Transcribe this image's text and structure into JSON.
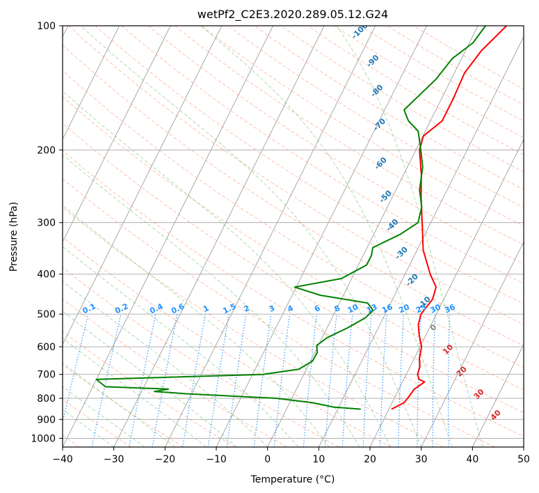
{
  "chart_data": {
    "type": "line",
    "subtype": "skew-t log-p diagram",
    "title": "wetPf2_C2E3.2020.289.05.12.G24",
    "xlabel": "Temperature (°C)",
    "ylabel": "Pressure (hPa)",
    "xlim": [
      -40,
      50
    ],
    "ylim": [
      1050,
      100
    ],
    "y_scale": "log",
    "grid": true,
    "x_ticks": [
      -40,
      -30,
      -20,
      -10,
      0,
      10,
      20,
      30,
      40,
      50
    ],
    "y_ticks": [
      1000,
      900,
      800,
      700,
      600,
      500,
      400,
      300,
      200,
      100
    ],
    "colors": {
      "temperature": "#ff0000",
      "dewpoint": "#008000",
      "dry_adiabat": "#ff8c69",
      "moist_adiabat": "#5cb85c",
      "mixing_ratio": "#1e90ff",
      "isotherm": "#7f7f7f",
      "label_dark_blue": "#1f77b4",
      "label_light_blue": "#1e90ff",
      "label_red": "#d62728"
    },
    "series": [
      {
        "name": "",
        "role": "temperature",
        "points": [
          {
            "p": 850,
            "t": 20.5
          },
          {
            "p": 820,
            "t": 22.3
          },
          {
            "p": 800,
            "t": 22.6
          },
          {
            "p": 760,
            "t": 23.0
          },
          {
            "p": 730,
            "t": 24.3
          },
          {
            "p": 720,
            "t": 23.0
          },
          {
            "p": 700,
            "t": 22.2
          },
          {
            "p": 670,
            "t": 21.9
          },
          {
            "p": 640,
            "t": 21.0
          },
          {
            "p": 600,
            "t": 20.3
          },
          {
            "p": 560,
            "t": 18.6
          },
          {
            "p": 530,
            "t": 17.5
          },
          {
            "p": 500,
            "t": 17.0
          },
          {
            "p": 460,
            "t": 17.8
          },
          {
            "p": 430,
            "t": 17.3
          },
          {
            "p": 400,
            "t": 14.9
          },
          {
            "p": 350,
            "t": 11.2
          },
          {
            "p": 300,
            "t": 8.3
          },
          {
            "p": 260,
            "t": 5.6
          },
          {
            "p": 230,
            "t": 3.5
          },
          {
            "p": 200,
            "t": 0.7
          },
          {
            "p": 185,
            "t": 0.1
          },
          {
            "p": 170,
            "t": 2.3
          },
          {
            "p": 150,
            "t": 2.3
          },
          {
            "p": 130,
            "t": 2.0
          },
          {
            "p": 115,
            "t": 3.1
          },
          {
            "p": 100,
            "t": 5.6
          }
        ]
      },
      {
        "name": "",
        "role": "dewpoint",
        "points": [
          {
            "p": 850,
            "t": 14.5
          },
          {
            "p": 840,
            "t": 9.0
          },
          {
            "p": 820,
            "t": 4.5
          },
          {
            "p": 800,
            "t": -3.0
          },
          {
            "p": 780,
            "t": -21.0
          },
          {
            "p": 770,
            "t": -27.5
          },
          {
            "p": 760,
            "t": -25.0
          },
          {
            "p": 750,
            "t": -37.5
          },
          {
            "p": 720,
            "t": -40.0
          },
          {
            "p": 700,
            "t": -8.0
          },
          {
            "p": 680,
            "t": -1.5
          },
          {
            "p": 650,
            "t": 0.4
          },
          {
            "p": 620,
            "t": 0.5
          },
          {
            "p": 595,
            "t": -0.3
          },
          {
            "p": 570,
            "t": 1.0
          },
          {
            "p": 540,
            "t": 4.0
          },
          {
            "p": 510,
            "t": 6.5
          },
          {
            "p": 490,
            "t": 7.3
          },
          {
            "p": 470,
            "t": 5.5
          },
          {
            "p": 450,
            "t": -4.5
          },
          {
            "p": 430,
            "t": -10.3
          },
          {
            "p": 410,
            "t": -2.0
          },
          {
            "p": 380,
            "t": 1.6
          },
          {
            "p": 360,
            "t": 1.6
          },
          {
            "p": 345,
            "t": 1.1
          },
          {
            "p": 320,
            "t": 5.2
          },
          {
            "p": 300,
            "t": 7.5
          },
          {
            "p": 275,
            "t": 6.7
          },
          {
            "p": 250,
            "t": 4.6
          },
          {
            "p": 220,
            "t": 3.0
          },
          {
            "p": 195,
            "t": 0.4
          },
          {
            "p": 180,
            "t": -1.4
          },
          {
            "p": 170,
            "t": -4.3
          },
          {
            "p": 160,
            "t": -6.2
          },
          {
            "p": 150,
            "t": -5.0
          },
          {
            "p": 135,
            "t": -3.0
          },
          {
            "p": 120,
            "t": -1.8
          },
          {
            "p": 110,
            "t": 0.7
          },
          {
            "p": 100,
            "t": 1.5
          }
        ]
      }
    ],
    "dry_adiabat_labels": [
      {
        "text": "-100",
        "p": 103,
        "t": -22.5
      },
      {
        "text": "-90",
        "p": 122,
        "t": -17.0
      },
      {
        "text": "-80",
        "p": 144,
        "t": -13.3
      },
      {
        "text": "-70",
        "p": 174,
        "t": -9.5
      },
      {
        "text": "-60",
        "p": 216,
        "t": -5.5
      },
      {
        "text": "-50",
        "p": 260,
        "t": -1.3
      },
      {
        "text": "-40",
        "p": 305,
        "t": 2.8
      },
      {
        "text": "-30",
        "p": 356,
        "t": 7.3
      },
      {
        "text": "-20",
        "p": 414,
        "t": 12.0
      },
      {
        "text": "-10",
        "p": 470,
        "t": 16.6
      },
      {
        "text": "0",
        "p": 540,
        "t": 20.8
      },
      {
        "text": "10",
        "p": 610,
        "t": 25.8
      },
      {
        "text": "20",
        "p": 690,
        "t": 30.6
      },
      {
        "text": "30",
        "p": 783,
        "t": 36.2
      },
      {
        "text": "40",
        "p": 880,
        "t": 41.5
      }
    ],
    "mixing_ratio_labels": [
      "0.1",
      "0.2",
      "0.4",
      "0.6",
      "1",
      "1.5",
      "2",
      "3",
      "4",
      "6",
      "8",
      "10",
      "13",
      "16",
      "20",
      "25",
      "30",
      "36"
    ]
  }
}
